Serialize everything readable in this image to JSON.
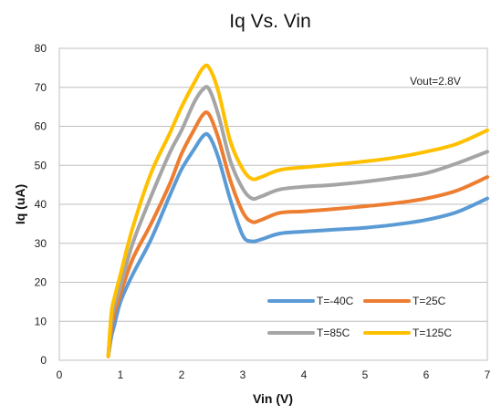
{
  "chart_data": {
    "type": "line",
    "title": "Iq Vs. Vin",
    "xlabel": "Vin (V)",
    "ylabel": "Iq (uA)",
    "xlim": [
      0,
      7
    ],
    "ylim": [
      0,
      80
    ],
    "xticks": [
      0,
      1,
      2,
      3,
      4,
      5,
      6,
      7
    ],
    "yticks": [
      0,
      10,
      20,
      30,
      40,
      50,
      60,
      70,
      80
    ],
    "grid": "horizontal",
    "annotation": "Vout=2.8V",
    "legend_position": "bottom-right",
    "series": [
      {
        "name": "T=-40C",
        "color": "#5b9bd5",
        "points": [
          [
            0.8,
            1
          ],
          [
            0.85,
            6
          ],
          [
            0.9,
            9
          ],
          [
            1.0,
            15
          ],
          [
            1.2,
            22
          ],
          [
            1.5,
            31
          ],
          [
            1.8,
            42
          ],
          [
            2.0,
            49
          ],
          [
            2.2,
            54
          ],
          [
            2.35,
            57.5
          ],
          [
            2.45,
            57.5
          ],
          [
            2.6,
            52
          ],
          [
            2.8,
            41
          ],
          [
            3.0,
            32
          ],
          [
            3.15,
            30.5
          ],
          [
            3.3,
            31
          ],
          [
            3.6,
            32.5
          ],
          [
            4.0,
            33
          ],
          [
            4.5,
            33.5
          ],
          [
            5.0,
            34
          ],
          [
            5.5,
            34.8
          ],
          [
            6.0,
            36
          ],
          [
            6.5,
            38
          ],
          [
            7.0,
            41.5
          ]
        ]
      },
      {
        "name": "T=25C",
        "color": "#ed7d31",
        "points": [
          [
            0.8,
            1
          ],
          [
            0.85,
            8
          ],
          [
            0.9,
            12
          ],
          [
            1.0,
            17
          ],
          [
            1.2,
            26
          ],
          [
            1.5,
            35
          ],
          [
            1.8,
            45
          ],
          [
            2.0,
            53
          ],
          [
            2.2,
            59
          ],
          [
            2.35,
            63
          ],
          [
            2.45,
            63
          ],
          [
            2.6,
            57
          ],
          [
            2.8,
            46
          ],
          [
            3.0,
            38
          ],
          [
            3.15,
            35.5
          ],
          [
            3.3,
            36
          ],
          [
            3.6,
            37.8
          ],
          [
            4.0,
            38.2
          ],
          [
            4.5,
            38.8
          ],
          [
            5.0,
            39.5
          ],
          [
            5.5,
            40.3
          ],
          [
            6.0,
            41.5
          ],
          [
            6.5,
            43.5
          ],
          [
            7.0,
            47
          ]
        ]
      },
      {
        "name": "T=85C",
        "color": "#a5a5a5",
        "points": [
          [
            0.8,
            1
          ],
          [
            0.85,
            10
          ],
          [
            0.9,
            14
          ],
          [
            1.0,
            19
          ],
          [
            1.2,
            30
          ],
          [
            1.5,
            42
          ],
          [
            1.8,
            53
          ],
          [
            2.0,
            59
          ],
          [
            2.2,
            66
          ],
          [
            2.35,
            69.5
          ],
          [
            2.45,
            69.5
          ],
          [
            2.6,
            63
          ],
          [
            2.8,
            51
          ],
          [
            3.0,
            44
          ],
          [
            3.15,
            41.5
          ],
          [
            3.3,
            42
          ],
          [
            3.6,
            43.8
          ],
          [
            4.0,
            44.5
          ],
          [
            4.5,
            45
          ],
          [
            5.0,
            45.8
          ],
          [
            5.5,
            46.8
          ],
          [
            6.0,
            48
          ],
          [
            6.5,
            50.5
          ],
          [
            7.0,
            53.5
          ]
        ]
      },
      {
        "name": "T=125C",
        "color": "#ffc000",
        "points": [
          [
            0.8,
            1
          ],
          [
            0.85,
            12
          ],
          [
            0.9,
            16
          ],
          [
            1.0,
            22
          ],
          [
            1.2,
            34
          ],
          [
            1.5,
            48
          ],
          [
            1.8,
            58
          ],
          [
            2.0,
            65
          ],
          [
            2.2,
            71
          ],
          [
            2.35,
            75
          ],
          [
            2.45,
            75
          ],
          [
            2.6,
            69
          ],
          [
            2.8,
            56
          ],
          [
            3.0,
            49
          ],
          [
            3.15,
            46.5
          ],
          [
            3.3,
            47
          ],
          [
            3.6,
            48.8
          ],
          [
            4.0,
            49.5
          ],
          [
            4.5,
            50.2
          ],
          [
            5.0,
            51
          ],
          [
            5.5,
            52
          ],
          [
            6.0,
            53.5
          ],
          [
            6.5,
            55.5
          ],
          [
            7.0,
            59
          ]
        ]
      }
    ]
  }
}
